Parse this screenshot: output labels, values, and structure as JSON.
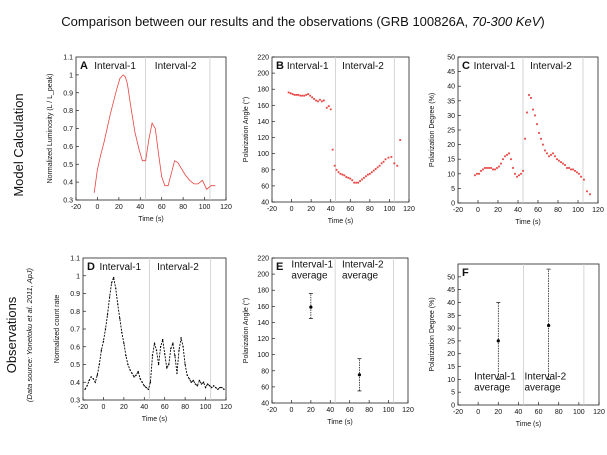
{
  "figure": {
    "title_prefix": "Comparison between our results and the observations (GRB 100826A, ",
    "title_italic": "70-300 KeV",
    "title_suffix": ")",
    "row_labels": {
      "model": "Model Calculation",
      "obs": "Observations",
      "obs_source": "(Data source: Yonetoku et al. 2011, ApJ)"
    },
    "colors": {
      "model": "#e8433f",
      "obs": "#000000",
      "axis": "#222222",
      "divider": "#cccccc"
    }
  },
  "chart_data": [
    {
      "id": "A",
      "type": "line",
      "letter": "A",
      "xlabel": "Time (s)",
      "ylabel": "Normalized Luminosity (L / L_peak)",
      "xlim": [
        -20,
        120
      ],
      "xticks": [
        -20,
        0,
        20,
        40,
        60,
        80,
        100,
        120
      ],
      "ylim": [
        0.3,
        1.1
      ],
      "yticks": [
        0.3,
        0.4,
        0.5,
        0.6,
        0.7,
        0.8,
        0.9,
        1
      ],
      "ytick_labels": [
        "0.3",
        "0.4",
        "0.5",
        "0.6",
        "0.7",
        "0.8",
        "0.9",
        "1"
      ],
      "extra_ytick": "1.1",
      "dividers": [
        45,
        105
      ],
      "intervals": [
        "Interval-1",
        "Interval-2"
      ],
      "style": "line",
      "color": "#e8433f",
      "series": [
        {
          "name": "model",
          "x": [
            -3,
            0,
            3,
            6,
            9,
            12,
            15,
            18,
            21,
            24,
            26,
            28,
            31,
            35,
            39,
            42,
            45,
            48,
            51,
            54,
            57,
            60,
            63,
            66,
            69,
            72,
            75,
            78,
            82,
            86,
            90,
            94,
            98,
            102,
            106,
            110
          ],
          "y": [
            0.34,
            0.47,
            0.55,
            0.62,
            0.7,
            0.78,
            0.85,
            0.92,
            0.98,
            1.0,
            0.99,
            0.95,
            0.83,
            0.68,
            0.58,
            0.52,
            0.52,
            0.64,
            0.73,
            0.7,
            0.56,
            0.43,
            0.38,
            0.38,
            0.45,
            0.52,
            0.51,
            0.48,
            0.44,
            0.41,
            0.39,
            0.39,
            0.41,
            0.36,
            0.38,
            0.38
          ]
        }
      ]
    },
    {
      "id": "B",
      "type": "scatter",
      "letter": "B",
      "xlabel": "Time (s)",
      "ylabel": "Polarization Angle (°)",
      "xlim": [
        -20,
        120
      ],
      "xticks": [
        -20,
        0,
        20,
        40,
        60,
        80,
        100,
        120
      ],
      "ylim": [
        40,
        220
      ],
      "yticks": [
        40,
        60,
        80,
        100,
        120,
        140,
        160,
        180,
        200,
        220
      ],
      "dividers": [
        45,
        105
      ],
      "intervals": [
        "Interval-1",
        "Interval-2"
      ],
      "style": "points",
      "color": "#e8433f",
      "series": [
        {
          "name": "model",
          "x": [
            -3,
            -1,
            1,
            3,
            5,
            7,
            9,
            11,
            13,
            15,
            17,
            19,
            21,
            23,
            25,
            27,
            29,
            31,
            33,
            36,
            38,
            40,
            42,
            44,
            46,
            48,
            50,
            52,
            54,
            56,
            58,
            60,
            62,
            64,
            66,
            68,
            70,
            72,
            74,
            76,
            78,
            80,
            82,
            84,
            86,
            88,
            90,
            92,
            94,
            96,
            99,
            102,
            105,
            108,
            111
          ],
          "y": [
            176,
            175,
            174,
            173,
            173,
            173,
            172,
            172,
            172,
            173,
            174,
            172,
            170,
            168,
            166,
            165,
            167,
            165,
            166,
            157,
            159,
            155,
            105,
            85,
            80,
            77,
            75,
            74,
            73,
            71,
            70,
            69,
            67,
            64,
            64,
            64,
            66,
            68,
            70,
            72,
            74,
            75,
            77,
            79,
            81,
            83,
            85,
            88,
            90,
            93,
            95,
            96,
            88,
            85,
            117
          ]
        }
      ]
    },
    {
      "id": "C",
      "type": "scatter",
      "letter": "C",
      "xlabel": "Time (s)",
      "ylabel": "Polarization Degree (%)",
      "xlim": [
        -20,
        120
      ],
      "xticks": [
        -20,
        0,
        20,
        40,
        60,
        80,
        100,
        120
      ],
      "ylim": [
        0,
        50
      ],
      "yticks": [
        0,
        5,
        10,
        15,
        20,
        25,
        30,
        35,
        40,
        45,
        50
      ],
      "dividers": [
        45,
        105
      ],
      "intervals": [
        "Interval-1",
        "Interval-2"
      ],
      "style": "points",
      "color": "#e8433f",
      "series": [
        {
          "name": "model",
          "x": [
            -3,
            -1,
            1,
            3,
            5,
            7,
            9,
            11,
            13,
            15,
            17,
            19,
            21,
            23,
            25,
            27,
            29,
            31,
            33,
            35,
            37,
            39,
            41,
            43,
            45,
            47,
            49,
            51,
            53,
            55,
            57,
            59,
            61,
            63,
            65,
            67,
            69,
            71,
            73,
            75,
            77,
            79,
            81,
            83,
            85,
            87,
            89,
            91,
            93,
            95,
            97,
            99,
            101,
            103,
            106,
            109,
            112
          ],
          "y": [
            9.5,
            10,
            10,
            11,
            11.5,
            12,
            12,
            12,
            12,
            11.5,
            11.5,
            12,
            12.5,
            13.5,
            15,
            16,
            16.5,
            17,
            15,
            12,
            10,
            9,
            9.5,
            10,
            11,
            22,
            31,
            37,
            36,
            32,
            30,
            27,
            24,
            22,
            20,
            18,
            17,
            16,
            16.5,
            17,
            16,
            15,
            14.5,
            14,
            13.5,
            13,
            12,
            12,
            11.5,
            11.5,
            11,
            10.5,
            10,
            9,
            8,
            4,
            3
          ]
        }
      ]
    },
    {
      "id": "D",
      "type": "line",
      "letter": "D",
      "xlabel": "Time (s)",
      "ylabel": "Normalized count rate",
      "xlim": [
        -20,
        120
      ],
      "xticks": [
        -20,
        0,
        20,
        40,
        60,
        80,
        100,
        120
      ],
      "ylim": [
        0.3,
        1.1
      ],
      "yticks": [
        0.3,
        0.4,
        0.5,
        0.6,
        0.7,
        0.8,
        0.9,
        1
      ],
      "ytick_labels": [
        "0.3",
        "0.4",
        "0.5",
        "0.6",
        "0.7",
        "0.8",
        "0.9",
        "1"
      ],
      "extra_ytick": "1.1",
      "dividers": [
        45,
        105
      ],
      "intervals": [
        "Interval-1",
        "Interval-2"
      ],
      "style": "line",
      "color": "#000000",
      "series": [
        {
          "name": "observed",
          "x": [
            -18,
            -16,
            -14,
            -12,
            -10,
            -8,
            -6,
            -4,
            -2,
            0,
            2,
            4,
            6,
            8,
            10,
            12,
            14,
            16,
            18,
            20,
            22,
            24,
            26,
            28,
            30,
            32,
            34,
            36,
            38,
            40,
            42,
            44,
            46,
            48,
            50,
            52,
            54,
            56,
            58,
            60,
            62,
            64,
            66,
            68,
            70,
            72,
            74,
            76,
            78,
            80,
            82,
            84,
            86,
            88,
            90,
            92,
            94,
            96,
            98,
            100,
            102,
            104,
            106,
            108,
            110,
            112,
            114,
            116,
            118
          ],
          "y": [
            0.36,
            0.38,
            0.41,
            0.43,
            0.42,
            0.4,
            0.44,
            0.5,
            0.58,
            0.63,
            0.7,
            0.78,
            0.88,
            0.96,
            0.99,
            0.93,
            0.84,
            0.76,
            0.68,
            0.62,
            0.55,
            0.5,
            0.47,
            0.45,
            0.43,
            0.44,
            0.46,
            0.42,
            0.4,
            0.38,
            0.37,
            0.36,
            0.4,
            0.55,
            0.62,
            0.58,
            0.5,
            0.6,
            0.64,
            0.56,
            0.48,
            0.5,
            0.59,
            0.62,
            0.55,
            0.45,
            0.58,
            0.65,
            0.6,
            0.5,
            0.44,
            0.42,
            0.4,
            0.41,
            0.39,
            0.38,
            0.41,
            0.39,
            0.4,
            0.37,
            0.39,
            0.38,
            0.37,
            0.38,
            0.37,
            0.36,
            0.37,
            0.37,
            0.36
          ]
        }
      ]
    },
    {
      "id": "E",
      "type": "scatter",
      "letter": "E",
      "xlabel": "Time (s)",
      "ylabel": "Polarization Angle (°)",
      "xlim": [
        -20,
        120
      ],
      "xticks": [
        -20,
        0,
        20,
        40,
        60,
        80,
        100,
        120
      ],
      "ylim": [
        40,
        220
      ],
      "yticks": [
        40,
        60,
        80,
        100,
        120,
        140,
        160,
        180,
        200,
        220
      ],
      "dividers": [
        45,
        105
      ],
      "intervals": [],
      "style": "errorbars",
      "color": "#000000",
      "annotations": [
        {
          "lines": [
            "Interval-1",
            "average"
          ],
          "x": 0,
          "y": 208
        },
        {
          "lines": [
            "Interval-2",
            "average"
          ],
          "x": 52,
          "y": 208
        }
      ],
      "points": [
        {
          "x": 20,
          "y": 159,
          "lo": 145,
          "hi": 176
        },
        {
          "x": 70,
          "y": 75,
          "lo": 55,
          "hi": 95
        }
      ]
    },
    {
      "id": "F",
      "type": "scatter",
      "letter": "F",
      "xlabel": "Time (s)",
      "ylabel": "Polarization Degree (%)",
      "xlim": [
        -20,
        120
      ],
      "xticks": [
        -20,
        0,
        20,
        40,
        60,
        80,
        100,
        120
      ],
      "ylim": [
        0,
        55
      ],
      "yticks": [
        0,
        5,
        10,
        15,
        20,
        25,
        30,
        35,
        40,
        45,
        50
      ],
      "dividers": [
        45,
        105
      ],
      "intervals": [],
      "style": "errorbars",
      "color": "#000000",
      "annotations": [
        {
          "lines": [
            "Interval-1",
            "average"
          ],
          "x": -4,
          "y": 10
        },
        {
          "lines": [
            "Interval-2",
            "average"
          ],
          "x": 46,
          "y": 10
        }
      ],
      "points": [
        {
          "x": 20,
          "y": 25,
          "lo": 10,
          "hi": 40
        },
        {
          "x": 70,
          "y": 31,
          "lo": 10,
          "hi": 53
        }
      ]
    }
  ]
}
